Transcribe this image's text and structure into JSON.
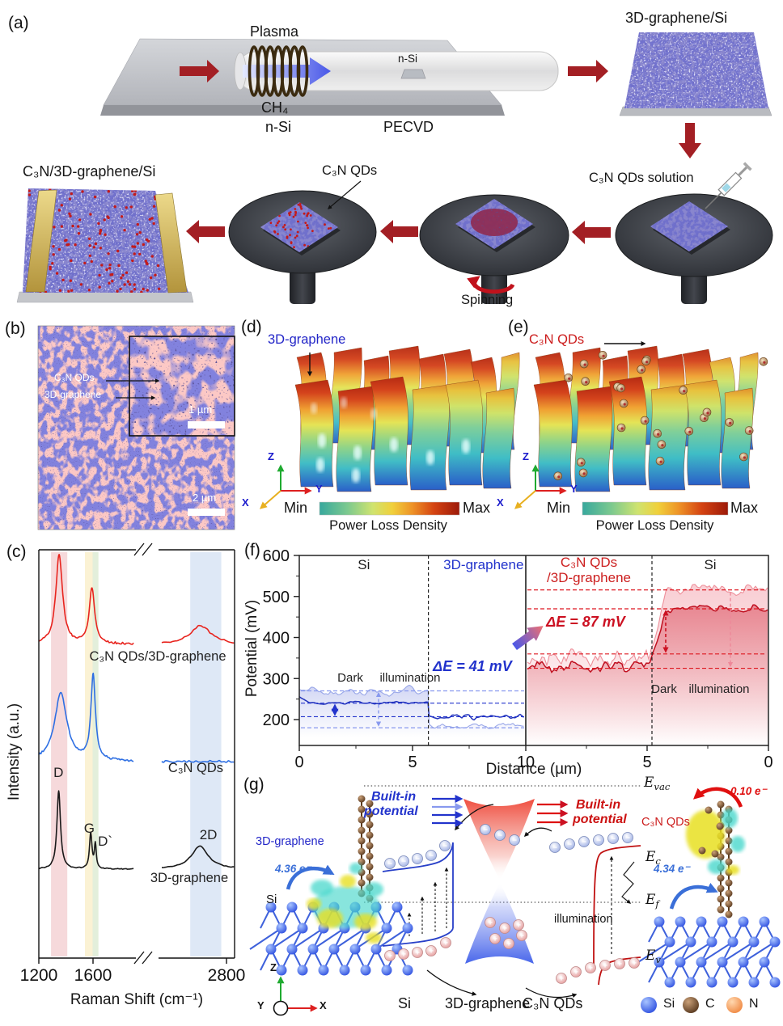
{
  "figure": {
    "panel_a": {
      "tag": "(a)",
      "n_si": "n-Si",
      "plasma": "Plasma",
      "ch4": "CH₄",
      "tube_sample": "n-Si",
      "pecvd": "PECVD",
      "graphene_si": "3D-graphene/Si",
      "device": "C₃N/3D-graphene/Si",
      "qds_pointer": "C₃N QDs",
      "spinning": "Spinning",
      "qds_solution": "C₃N QDs solution"
    },
    "panel_b": {
      "tag": "(b)",
      "label_qds": "C₃N QDs",
      "label_graphene": "3D-graphene",
      "scale_inset": "1 µm",
      "scale_main": "2 µm"
    },
    "panel_c": {
      "tag": "(c)"
    },
    "panel_d": {
      "tag": "(d)",
      "title": "3D-graphene",
      "min": "Min",
      "max": "Max",
      "colorbar": "Power Loss Density",
      "ax_x": "X",
      "ax_y": "Y",
      "ax_z": "Z"
    },
    "panel_e": {
      "tag": "(e)",
      "title": "C₃N QDs",
      "min": "Min",
      "max": "Max",
      "colorbar": "Power Loss Density",
      "ax_x": "X",
      "ax_y": "Y",
      "ax_z": "Z"
    },
    "panel_f": {
      "tag": "(f)"
    },
    "panel_g": {
      "tag": "(g)",
      "left_name": "3D-graphene",
      "left_charge": "4.36 e⁻",
      "left_substrate": "Si",
      "builtin_left_1": "Built-in",
      "builtin_left_2": "potential",
      "builtin_right_1": "Built-in",
      "builtin_right_2": "potential",
      "e_vac": {
        "base": "E",
        "sub": "vac"
      },
      "e_c": {
        "base": "E",
        "sub": "c"
      },
      "e_f": {
        "base": "E",
        "sub": "f"
      },
      "e_v": {
        "base": "E",
        "sub": "v"
      },
      "illumination": "illumination",
      "right_charge_top": "0.10 e⁻",
      "right_name": "C₃N QDs",
      "right_charge_bottom": "4.34 e⁻",
      "mat_si": "Si",
      "mat_graphene": "3D-graphene",
      "mat_qds": "C₃N QDs",
      "legend": [
        {
          "label": "Si",
          "color": "#2a52e8"
        },
        {
          "label": "C",
          "color": "#8a5a32"
        },
        {
          "label": "N",
          "color": "#ef8e4e"
        }
      ],
      "ax_x": "X",
      "ax_y": "Y",
      "ax_z": "Z"
    }
  },
  "chart_data": [
    {
      "type": "line",
      "panel": "c",
      "xlabel": "Raman Shift (cm⁻¹)",
      "ylabel": "Intensity (a.u.)",
      "x_ticks": [
        1200,
        1600,
        2800
      ],
      "axis_break": [
        1900,
        2550
      ],
      "xlim": [
        [
          1200,
          1900
        ],
        [
          2550,
          2830
        ]
      ],
      "grid": false,
      "highlight_bands": [
        {
          "x1": 1290,
          "x2": 1410,
          "color": "#f6d9db"
        },
        {
          "x1": 1540,
          "x2": 1597,
          "color": "#fbf2d4"
        },
        {
          "x1": 1597,
          "x2": 1640,
          "color": "#e3efdb"
        },
        {
          "x1": 2660,
          "x2": 2780,
          "color": "#dee8f6"
        }
      ],
      "series": [
        {
          "name": "C₃N QDs/3D-graphene",
          "color": "#e8241e",
          "peaks": [
            {
              "center": 1350,
              "width": 30,
              "height": 1.05
            },
            {
              "center": 1592,
              "width": 24,
              "height": 0.66
            },
            {
              "center": 2700,
              "width": 48,
              "height": 0.22
            }
          ]
        },
        {
          "name": "C₃N QDs",
          "color": "#2e6fe3",
          "peaks": [
            {
              "center": 1362,
              "width": 55,
              "height": 0.8
            },
            {
              "center": 1601,
              "width": 20,
              "height": 1.0
            }
          ]
        },
        {
          "name": "3D-graphene",
          "color": "#191919",
          "peaks": [
            {
              "center": 1347,
              "width": 16,
              "height": 0.92
            },
            {
              "center": 1583,
              "width": 11,
              "height": 0.42
            },
            {
              "center": 1617,
              "width": 8,
              "height": 0.28
            },
            {
              "center": 2697,
              "width": 40,
              "height": 0.27
            }
          ],
          "peak_labels": [
            {
              "text": "D",
              "x": 1345
            },
            {
              "text": "G",
              "x": 1572
            },
            {
              "text": "D`",
              "x": 1690
            },
            {
              "text": "2D",
              "x": 2730
            }
          ]
        }
      ]
    },
    {
      "type": "area",
      "panel": "f",
      "xlabel": "Distance (µm)",
      "ylabel": "Potential (mV)",
      "y_ticks": [
        600,
        500,
        400,
        300,
        200
      ],
      "ylim": [
        140,
        600
      ],
      "panels": [
        {
          "side": "left",
          "x_ticks": [
            0,
            5,
            10
          ],
          "x_range_um": [
            0,
            10
          ],
          "regions": [
            {
              "label": "Si",
              "color": "#1a1a1a",
              "span_um": [
                0,
                5.7
              ]
            },
            {
              "label": "3D-graphene",
              "color": "#2233cc",
              "span_um": [
                5.7,
                10
              ]
            }
          ],
          "series": [
            {
              "name": "Dark",
              "color": "#2233bb",
              "levels_mV": {
                "Si": 240,
                "3D-graphene": 206
              }
            },
            {
              "name": "illumination",
              "color": "#98a6e8",
              "levels_mV": {
                "Si": 265,
                "3D-graphene": 186
              }
            }
          ],
          "dashed_levels_mV": [
            270,
            240,
            207,
            180
          ],
          "delta_label": "ΔE = 41 mV",
          "dark_label": "Dark",
          "ill_label": "illumination"
        },
        {
          "side": "right",
          "x_ticks": [
            5,
            0
          ],
          "x_range_um": [
            10,
            0
          ],
          "reversed": true,
          "regions": [
            {
              "label": "C₃N QDs",
              "label2": "/3D-graphene",
              "color": "#cc1f1f",
              "span_um": [
                10,
                4.8
              ]
            },
            {
              "label": "Si",
              "color": "#1a1a1a",
              "span_um": [
                4.8,
                0
              ]
            }
          ],
          "series": [
            {
              "name": "Dark",
              "color": "#c01020",
              "levels_mV": {
                "C₃N QDs/3D-graphene": 330,
                "Si": 470
              }
            },
            {
              "name": "illumination",
              "color": "#ee8f9a",
              "levels_mV": {
                "C₃N QDs/3D-graphene": 352,
                "Si": 516
              }
            }
          ],
          "dashed_levels_mV": [
            516,
            470,
            360,
            325
          ],
          "delta_label": "ΔE = 87 mV",
          "dark_label": "Dark",
          "ill_label": "illumination"
        }
      ]
    }
  ]
}
